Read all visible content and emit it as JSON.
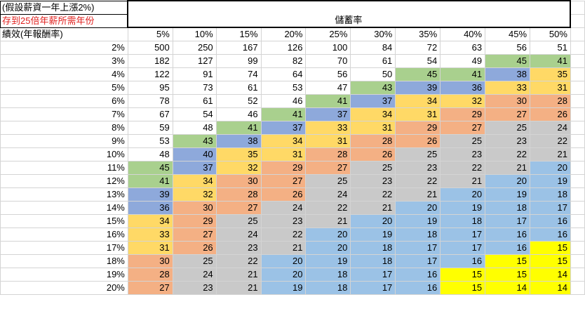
{
  "sheet": {
    "note_line1": "(假設薪資一年上漲2%)",
    "note_line2": "存到25倍年薪所需年份",
    "title": "儲蓄率",
    "corner_label": "績效(年報酬率)",
    "columns": [
      "5%",
      "10%",
      "15%",
      "20%",
      "25%",
      "30%",
      "35%",
      "40%",
      "45%",
      "50%"
    ],
    "rows": [
      {
        "label": "2%",
        "values": [
          500,
          250,
          167,
          126,
          100,
          84,
          72,
          63,
          56,
          51
        ]
      },
      {
        "label": "3%",
        "values": [
          182,
          127,
          99,
          82,
          70,
          61,
          54,
          49,
          45,
          41
        ]
      },
      {
        "label": "4%",
        "values": [
          122,
          91,
          74,
          64,
          56,
          50,
          45,
          41,
          38,
          35
        ]
      },
      {
        "label": "5%",
        "values": [
          95,
          73,
          61,
          53,
          47,
          43,
          39,
          36,
          33,
          31
        ]
      },
      {
        "label": "6%",
        "values": [
          78,
          61,
          52,
          46,
          41,
          37,
          34,
          32,
          30,
          28
        ]
      },
      {
        "label": "7%",
        "values": [
          67,
          54,
          46,
          41,
          37,
          34,
          31,
          29,
          27,
          26
        ]
      },
      {
        "label": "8%",
        "values": [
          59,
          48,
          41,
          37,
          33,
          31,
          29,
          27,
          25,
          24
        ]
      },
      {
        "label": "9%",
        "values": [
          53,
          43,
          38,
          34,
          31,
          28,
          26,
          25,
          23,
          22
        ]
      },
      {
        "label": "10%",
        "values": [
          48,
          40,
          35,
          31,
          28,
          26,
          25,
          23,
          22,
          21
        ]
      },
      {
        "label": "11%",
        "values": [
          45,
          37,
          32,
          29,
          27,
          25,
          23,
          22,
          21,
          20
        ]
      },
      {
        "label": "12%",
        "values": [
          41,
          34,
          30,
          27,
          25,
          23,
          22,
          21,
          20,
          19
        ]
      },
      {
        "label": "13%",
        "values": [
          39,
          32,
          28,
          26,
          24,
          22,
          21,
          20,
          19,
          18
        ]
      },
      {
        "label": "14%",
        "values": [
          36,
          30,
          27,
          24,
          22,
          21,
          20,
          19,
          18,
          17
        ]
      },
      {
        "label": "15%",
        "values": [
          34,
          29,
          25,
          23,
          21,
          20,
          19,
          18,
          17,
          16
        ]
      },
      {
        "label": "16%",
        "values": [
          33,
          27,
          24,
          22,
          20,
          19,
          18,
          17,
          16,
          16
        ]
      },
      {
        "label": "17%",
        "values": [
          31,
          26,
          23,
          21,
          20,
          18,
          17,
          17,
          16,
          15
        ]
      },
      {
        "label": "18%",
        "values": [
          30,
          25,
          22,
          20,
          19,
          18,
          17,
          16,
          15,
          15
        ]
      },
      {
        "label": "19%",
        "values": [
          28,
          24,
          21,
          20,
          18,
          17,
          16,
          15,
          15,
          14
        ]
      },
      {
        "label": "20%",
        "values": [
          27,
          23,
          21,
          19,
          18,
          17,
          16,
          15,
          14,
          14
        ]
      }
    ],
    "colors": {
      "green": "#a9d08e",
      "blue": "#8ea9db",
      "orange": "#ffd966",
      "salmon": "#f4b084",
      "gray": "#c9c9c9",
      "light_blue": "#9bc2e6",
      "yellow": "#ffff00",
      "note_red": "#e0201e"
    }
  }
}
